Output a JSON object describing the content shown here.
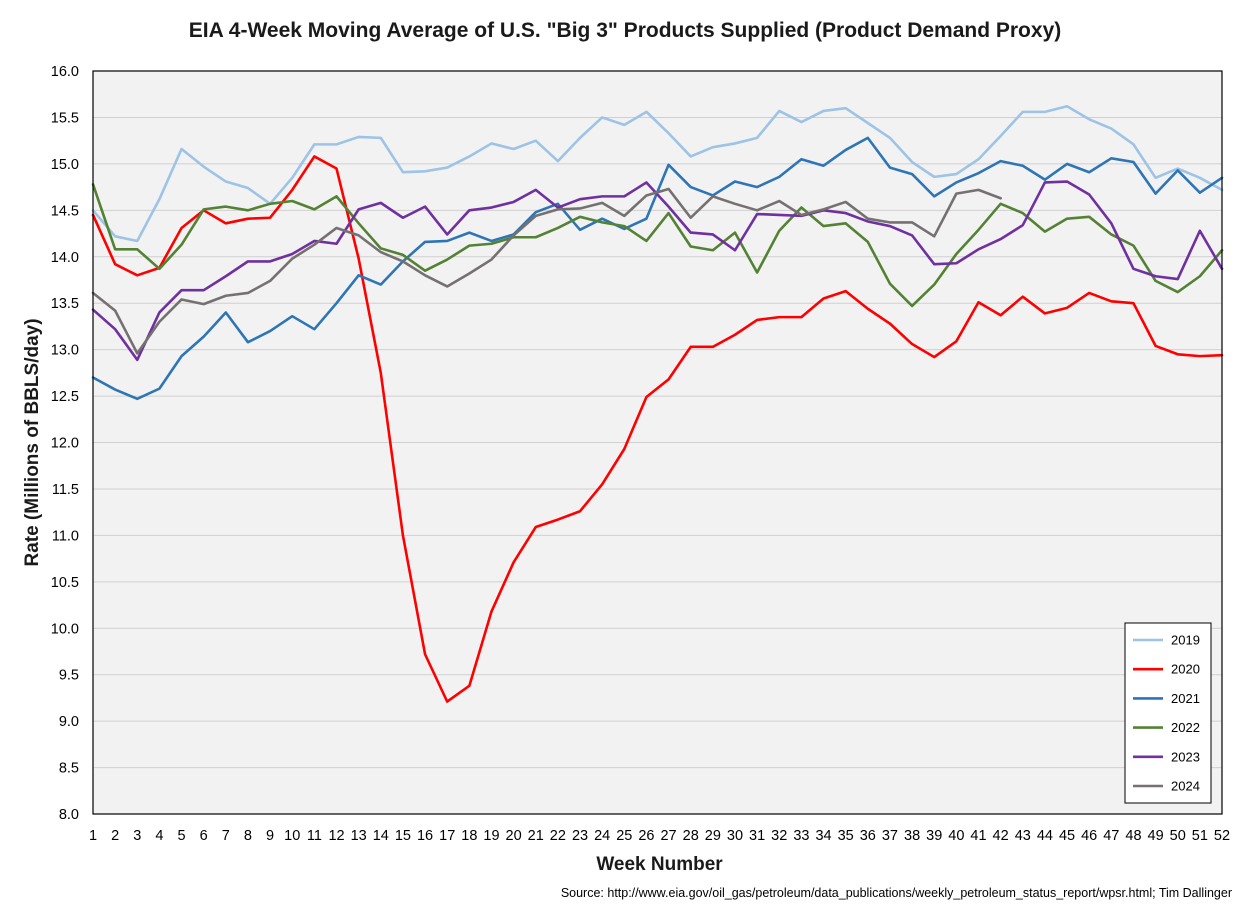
{
  "chart_data": {
    "type": "line",
    "title": "EIA 4-Week Moving Average of U.S. \"Big 3\" Products Supplied (Product Demand Proxy)",
    "xlabel": "Week Number",
    "ylabel": "Rate (Millions of BBLS/day)",
    "source": "Source: http://www.eia.gov/oil_gas/petroleum/data_publications/weekly_petroleum_status_report/wpsr.html; Tim Dallinger",
    "ylim": [
      8.0,
      16.0
    ],
    "ytick_step": 0.5,
    "yticks": [
      "8.0",
      "8.5",
      "9.0",
      "9.5",
      "10.0",
      "10.5",
      "11.0",
      "11.5",
      "12.0",
      "12.5",
      "13.0",
      "13.5",
      "14.0",
      "14.5",
      "15.0",
      "15.5",
      "16.0"
    ],
    "xlim": [
      1,
      52
    ],
    "xticks": [
      "1",
      "2",
      "3",
      "4",
      "5",
      "6",
      "7",
      "8",
      "9",
      "10",
      "11",
      "12",
      "13",
      "14",
      "15",
      "16",
      "17",
      "18",
      "19",
      "20",
      "21",
      "22",
      "23",
      "24",
      "25",
      "26",
      "27",
      "28",
      "29",
      "30",
      "31",
      "32",
      "33",
      "34",
      "35",
      "36",
      "37",
      "38",
      "39",
      "40",
      "41",
      "42",
      "43",
      "44",
      "45",
      "46",
      "47",
      "48",
      "49",
      "50",
      "51",
      "52"
    ],
    "grid": true,
    "plot_background": "#f2f2f2",
    "legend_position": "bottom-right",
    "series": [
      {
        "name": "2019",
        "color": "#9dc3e6",
        "values": [
          14.5,
          14.22,
          14.17,
          14.62,
          15.16,
          14.97,
          14.81,
          14.74,
          14.57,
          14.85,
          15.21,
          15.21,
          15.29,
          15.28,
          14.91,
          14.92,
          14.96,
          15.08,
          15.22,
          15.16,
          15.25,
          15.03,
          15.28,
          15.5,
          15.42,
          15.56,
          15.33,
          15.08,
          15.18,
          15.22,
          15.28,
          15.57,
          15.45,
          15.57,
          15.6,
          15.44,
          15.28,
          15.02,
          14.86,
          14.89,
          15.05,
          15.3,
          15.56,
          15.56,
          15.62,
          15.48,
          15.38,
          15.21,
          14.85,
          14.95,
          14.85,
          14.72
        ]
      },
      {
        "name": "2020",
        "color": "#ff0000",
        "values": [
          14.45,
          13.92,
          13.8,
          13.88,
          14.31,
          14.5,
          14.36,
          14.41,
          14.42,
          14.72,
          15.08,
          14.95,
          13.98,
          12.75,
          11.0,
          9.72,
          9.21,
          9.38,
          10.18,
          10.71,
          11.09,
          11.17,
          11.26,
          11.55,
          11.93,
          12.49,
          12.68,
          13.03,
          13.03,
          13.16,
          13.32,
          13.35,
          13.35,
          13.55,
          13.63,
          13.44,
          13.28,
          13.06,
          12.92,
          13.09,
          13.51,
          13.37,
          13.57,
          13.39,
          13.45,
          13.61,
          13.52,
          13.5,
          13.04,
          12.95,
          12.93,
          12.94
        ]
      },
      {
        "name": "2021",
        "color": "#2e75b6",
        "values": [
          12.7,
          12.57,
          12.47,
          12.58,
          12.93,
          13.14,
          13.4,
          13.08,
          13.2,
          13.36,
          13.22,
          13.5,
          13.8,
          13.7,
          13.95,
          14.16,
          14.17,
          14.26,
          14.17,
          14.24,
          14.48,
          14.57,
          14.29,
          14.41,
          14.3,
          14.41,
          14.99,
          14.75,
          14.66,
          14.81,
          14.75,
          14.86,
          15.05,
          14.98,
          15.15,
          15.28,
          14.96,
          14.89,
          14.65,
          14.8,
          14.9,
          15.03,
          14.98,
          14.83,
          15.0,
          14.91,
          15.06,
          15.02,
          14.68,
          14.93,
          14.69,
          14.85
        ]
      },
      {
        "name": "2022",
        "color": "#548235",
        "values": [
          14.78,
          14.08,
          14.08,
          13.87,
          14.13,
          14.51,
          14.54,
          14.5,
          14.57,
          14.6,
          14.51,
          14.65,
          14.36,
          14.09,
          14.02,
          13.85,
          13.97,
          14.12,
          14.14,
          14.21,
          14.21,
          14.31,
          14.43,
          14.37,
          14.33,
          14.17,
          14.47,
          14.11,
          14.07,
          14.26,
          13.83,
          14.28,
          14.53,
          14.33,
          14.36,
          14.16,
          13.71,
          13.47,
          13.7,
          14.03,
          14.29,
          14.57,
          14.47,
          14.27,
          14.41,
          14.43,
          14.24,
          14.12,
          13.74,
          13.62,
          13.79,
          14.07
        ]
      },
      {
        "name": "2023",
        "color": "#7030a0",
        "values": [
          13.43,
          13.22,
          12.89,
          13.4,
          13.64,
          13.64,
          13.79,
          13.95,
          13.95,
          14.03,
          14.17,
          14.14,
          14.51,
          14.58,
          14.42,
          14.54,
          14.24,
          14.5,
          14.53,
          14.59,
          14.72,
          14.53,
          14.62,
          14.65,
          14.65,
          14.8,
          14.54,
          14.26,
          14.24,
          14.07,
          14.46,
          14.45,
          14.44,
          14.5,
          14.47,
          14.38,
          14.33,
          14.23,
          13.92,
          13.93,
          14.08,
          14.19,
          14.34,
          14.8,
          14.81,
          14.67,
          14.36,
          13.87,
          13.79,
          13.76,
          14.28,
          13.87
        ]
      },
      {
        "name": "2024",
        "color": "#767171",
        "values": [
          13.61,
          13.42,
          12.96,
          13.3,
          13.54,
          13.49,
          13.58,
          13.61,
          13.74,
          13.98,
          14.13,
          14.31,
          14.23,
          14.05,
          13.95,
          13.8,
          13.68,
          13.82,
          13.97,
          14.23,
          14.44,
          14.51,
          14.52,
          14.58,
          14.44,
          14.66,
          14.73,
          14.42,
          14.65,
          14.57,
          14.5,
          14.6,
          14.45,
          14.51,
          14.59,
          14.41,
          14.37,
          14.37,
          14.22,
          14.68,
          14.72,
          14.63
        ]
      }
    ]
  }
}
